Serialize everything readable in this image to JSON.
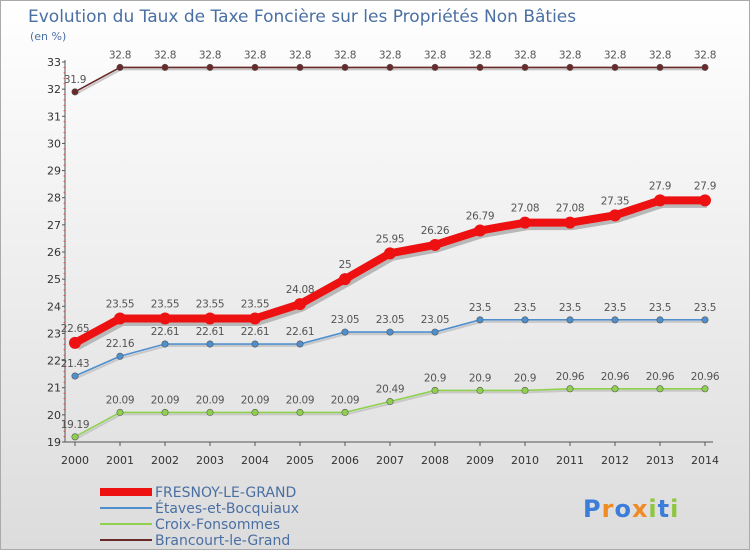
{
  "chart_data": {
    "type": "line",
    "title": "Evolution du Taux de Taxe Foncière sur les Propriétés Non Bâties",
    "unit_label": "(en %)",
    "xlabel": "",
    "ylabel": "(en %)",
    "categories": [
      "2000",
      "2001",
      "2002",
      "2003",
      "2004",
      "2005",
      "2006",
      "2007",
      "2008",
      "2009",
      "2010",
      "2011",
      "2012",
      "2013",
      "2014"
    ],
    "yticks": [
      19,
      20,
      21,
      22,
      23,
      24,
      25,
      26,
      27,
      28,
      29,
      30,
      31,
      32,
      33
    ],
    "ylim": [
      19,
      33
    ],
    "grid": false,
    "legend_position": "bottom-left",
    "series": [
      {
        "name": "FRESNOY-LE-GRAND",
        "color": "#ee1111",
        "emphasis": true,
        "values": [
          22.65,
          23.55,
          23.55,
          23.55,
          23.55,
          24.08,
          25,
          25.95,
          26.26,
          26.79,
          27.08,
          27.08,
          27.35,
          27.9,
          27.9
        ],
        "labels": [
          "22.65",
          "23.55",
          "23.55",
          "23.55",
          "23.55",
          "24.08",
          "25",
          "25.95",
          "26.26",
          "26.79",
          "27.08",
          "27.08",
          "27.35",
          "27.9",
          "27.9"
        ]
      },
      {
        "name": "Étaves-et-Bocquiaux",
        "color": "#4f8fce",
        "values": [
          21.43,
          22.16,
          22.61,
          22.61,
          22.61,
          22.61,
          23.05,
          23.05,
          23.05,
          23.5,
          23.5,
          23.5,
          23.5,
          23.5,
          23.5
        ],
        "labels": [
          "21.43",
          "22.16",
          "22.61",
          "22.61",
          "22.61",
          "22.61",
          "23.05",
          "23.05",
          "23.05",
          "23.5",
          "23.5",
          "23.5",
          "23.5",
          "23.5",
          "23.5"
        ]
      },
      {
        "name": "Croix-Fonsommes",
        "color": "#8fd14f",
        "values": [
          19.19,
          20.09,
          20.09,
          20.09,
          20.09,
          20.09,
          20.09,
          20.49,
          20.9,
          20.9,
          20.9,
          20.96,
          20.96,
          20.96,
          20.96
        ],
        "labels": [
          "19.19",
          "20.09",
          "20.09",
          "20.09",
          "20.09",
          "20.09",
          "20.09",
          "20.49",
          "20.9",
          "20.9",
          "20.9",
          "20.96",
          "20.96",
          "20.96",
          "20.96"
        ]
      },
      {
        "name": "Brancourt-le-Grand",
        "color": "#6b2a2a",
        "values": [
          31.9,
          32.8,
          32.8,
          32.8,
          32.8,
          32.8,
          32.8,
          32.8,
          32.8,
          32.8,
          32.8,
          32.8,
          32.8,
          32.8,
          32.8
        ],
        "labels": [
          "31.9",
          "32.8",
          "32.8",
          "32.8",
          "32.8",
          "32.8",
          "32.8",
          "32.8",
          "32.8",
          "32.8",
          "32.8",
          "32.8",
          "32.8",
          "32.8",
          "32.8"
        ]
      }
    ]
  },
  "logo": {
    "letters": [
      "P",
      "r",
      "o",
      "x",
      "i",
      "t",
      "i"
    ],
    "colors": [
      "#3b7dd8",
      "#f08a24",
      "#3b7dd8",
      "#f08a24",
      "#8fc63f",
      "#3b7dd8",
      "#8fc63f"
    ]
  }
}
